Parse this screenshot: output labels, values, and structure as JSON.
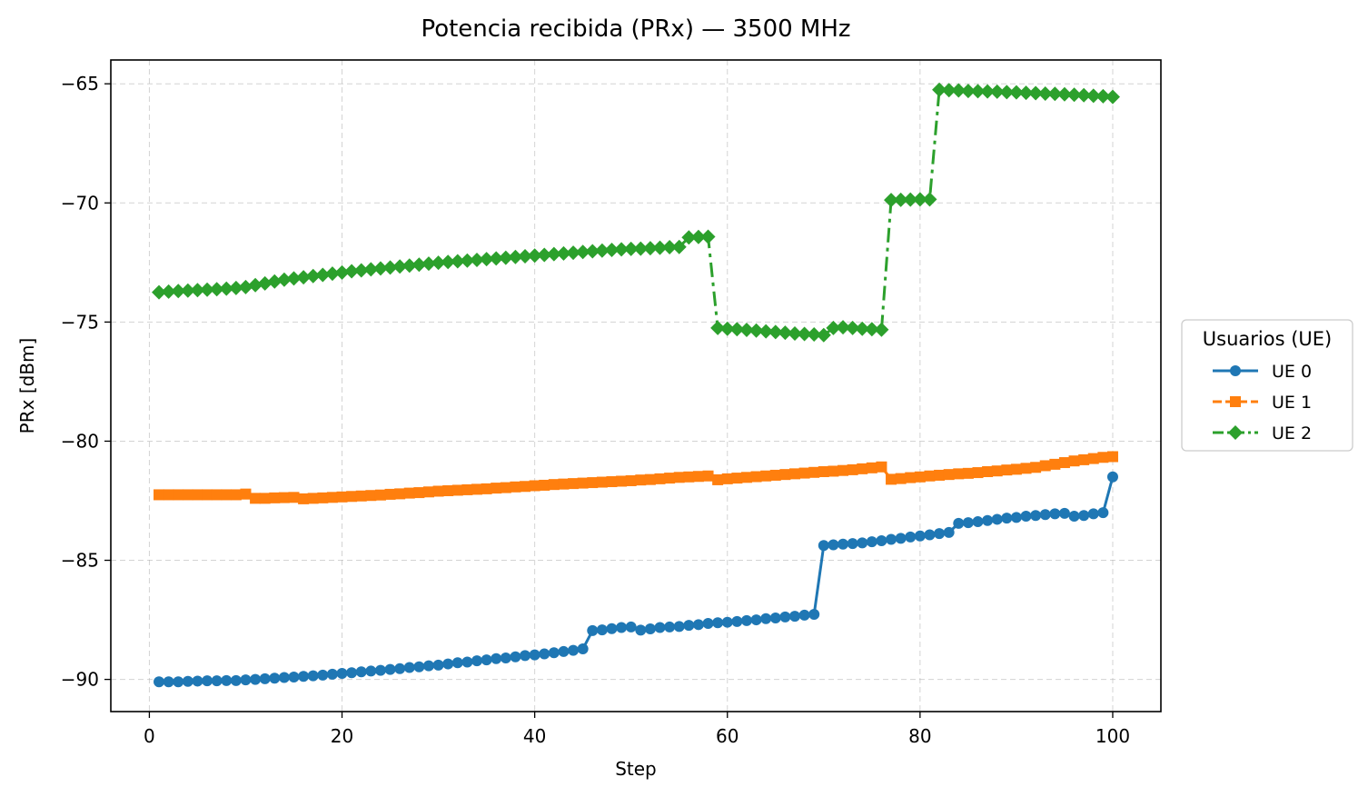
{
  "chart_data": {
    "type": "line",
    "title": "Potencia recibida (PRx) — 3500 MHz",
    "xlabel": "Step",
    "ylabel": "PRx [dBm]",
    "xlim": [
      -4,
      105
    ],
    "ylim": [
      -91.35,
      -64.0
    ],
    "xticks": [
      0,
      20,
      40,
      60,
      80,
      100
    ],
    "xtick_labels": [
      "0",
      "20",
      "40",
      "60",
      "80",
      "100"
    ],
    "yticks": [
      -65,
      -70,
      -75,
      -80,
      -85,
      -90
    ],
    "ytick_labels": [
      "−65",
      "−70",
      "−75",
      "−80",
      "−85",
      "−90"
    ],
    "grid": true,
    "legend": {
      "title": "Usuarios (UE)",
      "placement": "outside-right-center"
    },
    "x": [
      1,
      2,
      3,
      4,
      5,
      6,
      7,
      8,
      9,
      10,
      11,
      12,
      13,
      14,
      15,
      16,
      17,
      18,
      19,
      20,
      21,
      22,
      23,
      24,
      25,
      26,
      27,
      28,
      29,
      30,
      31,
      32,
      33,
      34,
      35,
      36,
      37,
      38,
      39,
      40,
      41,
      42,
      43,
      44,
      45,
      46,
      47,
      48,
      49,
      50,
      51,
      52,
      53,
      54,
      55,
      56,
      57,
      58,
      59,
      60,
      61,
      62,
      63,
      64,
      65,
      66,
      67,
      68,
      69,
      70,
      71,
      72,
      73,
      74,
      75,
      76,
      77,
      78,
      79,
      80,
      81,
      82,
      83,
      84,
      85,
      86,
      87,
      88,
      89,
      90,
      91,
      92,
      93,
      94,
      95,
      96,
      97,
      98,
      99,
      100
    ],
    "series": [
      {
        "name": "UE 0",
        "color": "#1f77b4",
        "marker": "circle",
        "line_style": "solid",
        "values": [
          -90.1,
          -90.1,
          -90.1,
          -90.08,
          -90.07,
          -90.06,
          -90.06,
          -90.05,
          -90.05,
          -90.02,
          -90.0,
          -89.97,
          -89.95,
          -89.92,
          -89.9,
          -89.87,
          -89.85,
          -89.82,
          -89.78,
          -89.75,
          -89.72,
          -89.68,
          -89.65,
          -89.62,
          -89.58,
          -89.55,
          -89.5,
          -89.47,
          -89.43,
          -89.4,
          -89.35,
          -89.3,
          -89.27,
          -89.22,
          -89.18,
          -89.13,
          -89.1,
          -89.05,
          -89.0,
          -88.97,
          -88.93,
          -88.88,
          -88.83,
          -88.78,
          -88.72,
          -87.95,
          -87.92,
          -87.87,
          -87.82,
          -87.8,
          -87.93,
          -87.88,
          -87.82,
          -87.8,
          -87.78,
          -87.73,
          -87.7,
          -87.65,
          -87.62,
          -87.6,
          -87.57,
          -87.53,
          -87.5,
          -87.45,
          -87.42,
          -87.38,
          -87.35,
          -87.3,
          -87.27,
          -84.38,
          -84.35,
          -84.32,
          -84.3,
          -84.27,
          -84.22,
          -84.18,
          -84.12,
          -84.08,
          -84.02,
          -83.98,
          -83.93,
          -83.88,
          -83.83,
          -83.45,
          -83.42,
          -83.38,
          -83.33,
          -83.28,
          -83.23,
          -83.2,
          -83.15,
          -83.12,
          -83.08,
          -83.05,
          -83.03,
          -83.15,
          -83.12,
          -83.05,
          -83.0,
          -81.5
        ]
      },
      {
        "name": "UE 1",
        "color": "#ff7f0e",
        "marker": "square",
        "line_style": "dashed",
        "values": [
          -82.25,
          -82.25,
          -82.25,
          -82.25,
          -82.25,
          -82.25,
          -82.25,
          -82.25,
          -82.25,
          -82.22,
          -82.4,
          -82.4,
          -82.38,
          -82.37,
          -82.36,
          -82.42,
          -82.4,
          -82.38,
          -82.36,
          -82.34,
          -82.32,
          -82.3,
          -82.28,
          -82.26,
          -82.23,
          -82.21,
          -82.18,
          -82.16,
          -82.13,
          -82.1,
          -82.08,
          -82.06,
          -82.04,
          -82.02,
          -82.0,
          -81.97,
          -81.95,
          -81.92,
          -81.9,
          -81.87,
          -81.85,
          -81.82,
          -81.8,
          -81.78,
          -81.76,
          -81.74,
          -81.72,
          -81.7,
          -81.68,
          -81.66,
          -81.63,
          -81.61,
          -81.58,
          -81.55,
          -81.52,
          -81.5,
          -81.48,
          -81.46,
          -81.62,
          -81.58,
          -81.55,
          -81.52,
          -81.49,
          -81.46,
          -81.43,
          -81.4,
          -81.37,
          -81.34,
          -81.31,
          -81.28,
          -81.26,
          -81.23,
          -81.2,
          -81.16,
          -81.12,
          -81.08,
          -81.6,
          -81.57,
          -81.53,
          -81.5,
          -81.46,
          -81.43,
          -81.4,
          -81.37,
          -81.35,
          -81.32,
          -81.28,
          -81.25,
          -81.21,
          -81.18,
          -81.14,
          -81.1,
          -81.03,
          -80.97,
          -80.9,
          -80.83,
          -80.78,
          -80.73,
          -80.68,
          -80.65
        ]
      },
      {
        "name": "UE 2",
        "color": "#2ca02c",
        "marker": "diamond",
        "line_style": "dashdot",
        "values": [
          -73.75,
          -73.72,
          -73.7,
          -73.68,
          -73.66,
          -73.64,
          -73.62,
          -73.6,
          -73.57,
          -73.53,
          -73.45,
          -73.38,
          -73.3,
          -73.22,
          -73.17,
          -73.12,
          -73.07,
          -73.02,
          -72.97,
          -72.92,
          -72.87,
          -72.83,
          -72.79,
          -72.75,
          -72.71,
          -72.67,
          -72.63,
          -72.59,
          -72.55,
          -72.51,
          -72.48,
          -72.45,
          -72.42,
          -72.39,
          -72.36,
          -72.33,
          -72.3,
          -72.27,
          -72.24,
          -72.21,
          -72.18,
          -72.15,
          -72.12,
          -72.09,
          -72.06,
          -72.03,
          -72.0,
          -71.97,
          -71.95,
          -71.93,
          -71.92,
          -71.9,
          -71.88,
          -71.86,
          -71.85,
          -71.45,
          -71.43,
          -71.42,
          -75.25,
          -75.28,
          -75.3,
          -75.33,
          -75.36,
          -75.39,
          -75.42,
          -75.45,
          -75.48,
          -75.5,
          -75.52,
          -75.55,
          -75.25,
          -75.22,
          -75.25,
          -75.28,
          -75.3,
          -75.32,
          -69.88,
          -69.87,
          -69.86,
          -69.85,
          -69.85,
          -65.25,
          -65.27,
          -65.28,
          -65.3,
          -65.31,
          -65.32,
          -65.33,
          -65.35,
          -65.36,
          -65.38,
          -65.39,
          -65.41,
          -65.42,
          -65.44,
          -65.46,
          -65.48,
          -65.5,
          -65.52,
          -65.55
        ]
      }
    ]
  }
}
